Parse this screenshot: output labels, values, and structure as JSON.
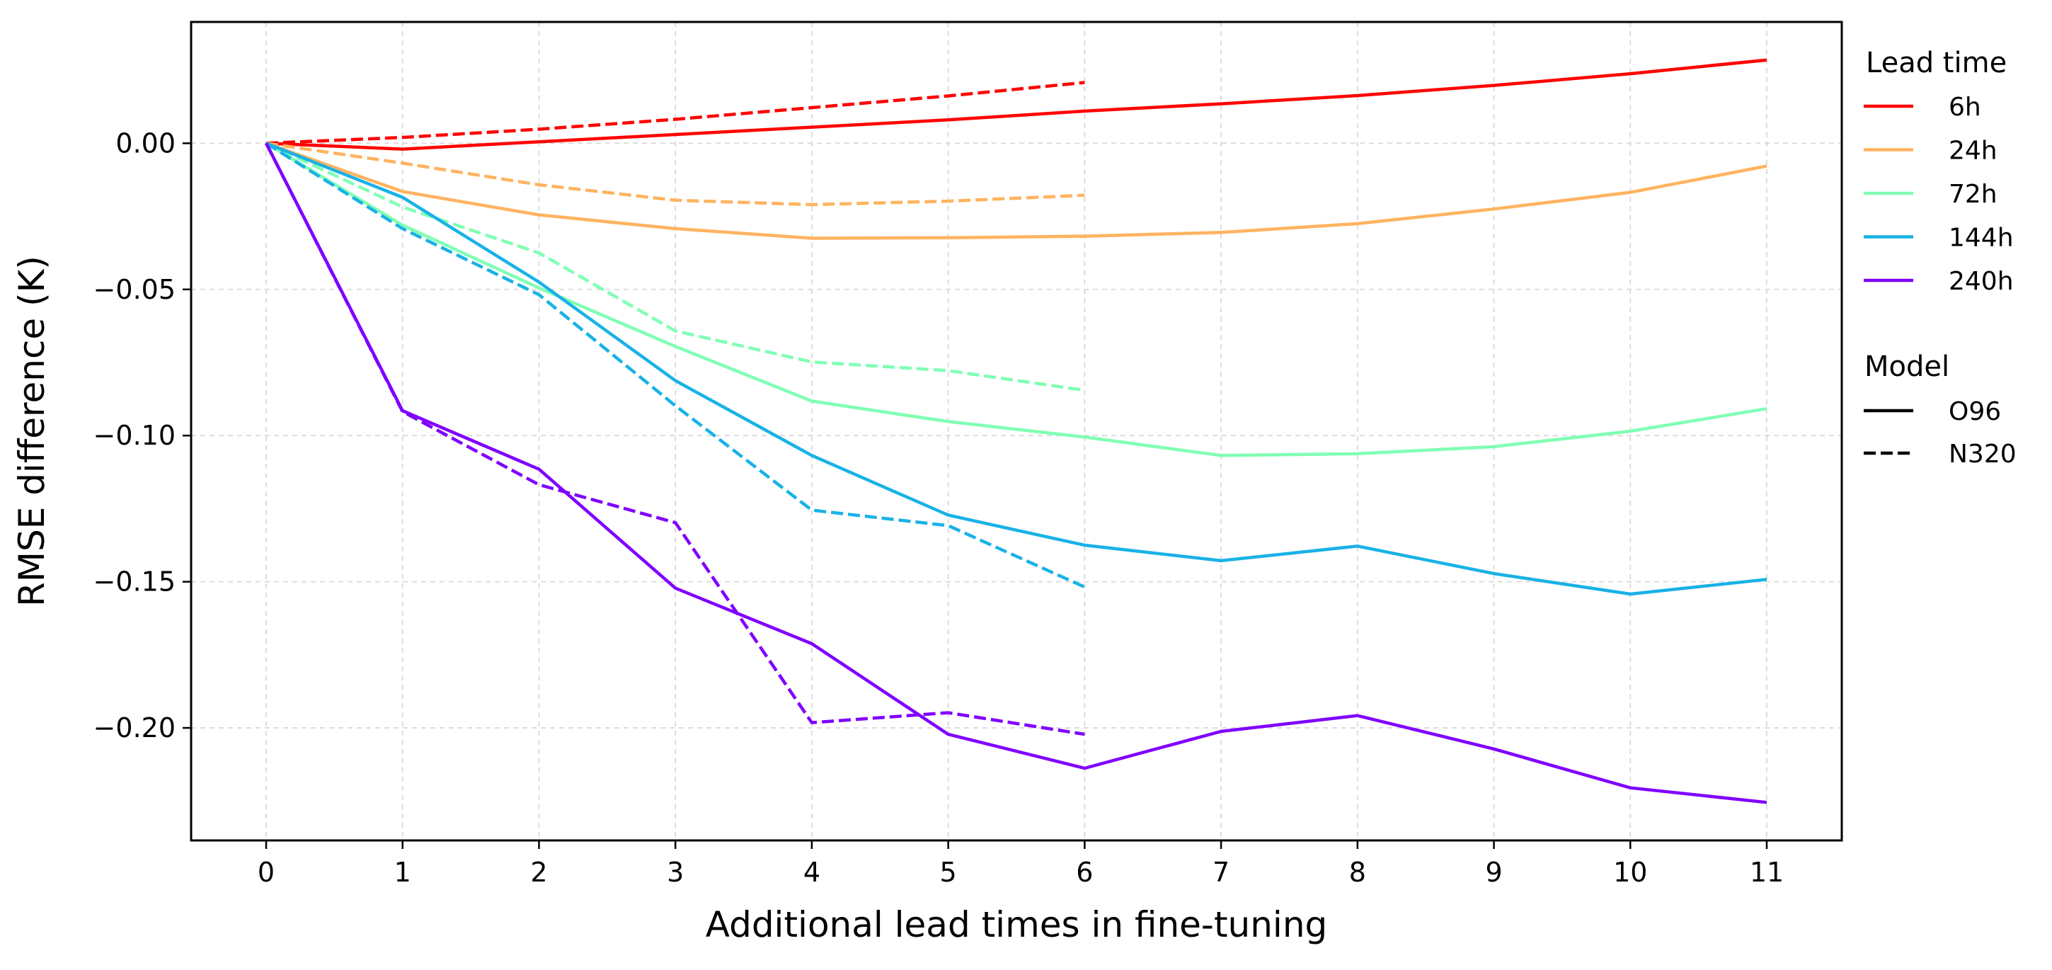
{
  "chart_data": {
    "type": "line",
    "title": "",
    "xlabel": "Additional lead times in fine-tuning",
    "ylabel": "RMSE difference (K)",
    "xlim": [
      -0.55,
      11.55
    ],
    "ylim": [
      -0.2385,
      0.0415
    ],
    "xticks": [
      0,
      1,
      2,
      3,
      4,
      5,
      6,
      7,
      8,
      9,
      10,
      11
    ],
    "xtick_labels": [
      "0",
      "1",
      "2",
      "3",
      "4",
      "5",
      "6",
      "7",
      "8",
      "9",
      "10",
      "11"
    ],
    "yticks": [
      0.0,
      -0.05,
      -0.1,
      -0.15,
      -0.2
    ],
    "ytick_labels": [
      "0.00",
      "−0.05",
      "−0.10",
      "−0.15",
      "−0.20"
    ],
    "grid": true,
    "legend_position": "outside-right",
    "legends": {
      "lead_time": {
        "title": "Lead time",
        "entries": [
          {
            "label": "6h",
            "color": "#ff0000"
          },
          {
            "label": "24h",
            "color": "#ffb360"
          },
          {
            "label": "72h",
            "color": "#80ffb4"
          },
          {
            "label": "144h",
            "color": "#18b2e6"
          },
          {
            "label": "240h",
            "color": "#8000ff"
          }
        ]
      },
      "model": {
        "title": "Model",
        "entries": [
          {
            "label": "O96",
            "style": "solid"
          },
          {
            "label": "N320",
            "style": "dashed"
          }
        ]
      }
    },
    "series": [
      {
        "name": "6h O96",
        "lead_time": "6h",
        "model": "O96",
        "color": "#ff0000",
        "style": "solid",
        "x": [
          0,
          1,
          2,
          3,
          4,
          5,
          6,
          7,
          8,
          9,
          10,
          11
        ],
        "values": [
          0.0,
          -0.002,
          0.0005,
          0.003,
          0.0055,
          0.008,
          0.011,
          0.0135,
          0.0163,
          0.0198,
          0.0238,
          0.0285
        ]
      },
      {
        "name": "6h N320",
        "lead_time": "6h",
        "model": "N320",
        "color": "#ff0000",
        "style": "dashed",
        "x": [
          0,
          1,
          2,
          3,
          4,
          5,
          6
        ],
        "values": [
          0.0,
          0.002,
          0.0048,
          0.0082,
          0.0122,
          0.0162,
          0.0208
        ]
      },
      {
        "name": "24h O96",
        "lead_time": "24h",
        "model": "O96",
        "color": "#ffb360",
        "style": "solid",
        "x": [
          0,
          1,
          2,
          3,
          4,
          5,
          6,
          7,
          8,
          9,
          10,
          11
        ],
        "values": [
          0.0,
          -0.0165,
          -0.0245,
          -0.0292,
          -0.0325,
          -0.0323,
          -0.0318,
          -0.0305,
          -0.0275,
          -0.0225,
          -0.0168,
          -0.0078
        ]
      },
      {
        "name": "24h N320",
        "lead_time": "24h",
        "model": "N320",
        "color": "#ffb360",
        "style": "dashed",
        "x": [
          0,
          1,
          2,
          3,
          4,
          5,
          6
        ],
        "values": [
          0.0,
          -0.0068,
          -0.0142,
          -0.0195,
          -0.021,
          -0.0198,
          -0.0178
        ]
      },
      {
        "name": "72h O96",
        "lead_time": "72h",
        "model": "O96",
        "color": "#80ffb4",
        "style": "solid",
        "x": [
          0,
          1,
          2,
          3,
          4,
          5,
          6,
          7,
          8,
          9,
          10,
          11
        ],
        "values": [
          0.0,
          -0.028,
          -0.0495,
          -0.0695,
          -0.0882,
          -0.0952,
          -0.1005,
          -0.1068,
          -0.1062,
          -0.1038,
          -0.0985,
          -0.0908
        ]
      },
      {
        "name": "72h N320",
        "lead_time": "72h",
        "model": "N320",
        "color": "#80ffb4",
        "style": "dashed",
        "x": [
          0,
          1,
          2,
          3,
          4,
          5,
          6
        ],
        "values": [
          0.0,
          -0.0218,
          -0.0375,
          -0.0642,
          -0.0748,
          -0.0778,
          -0.0845
        ]
      },
      {
        "name": "144h O96",
        "lead_time": "144h",
        "model": "O96",
        "color": "#18b2e6",
        "style": "solid",
        "x": [
          0,
          1,
          2,
          3,
          4,
          5,
          6,
          7,
          8,
          9,
          10,
          11
        ],
        "values": [
          0.0,
          -0.0185,
          -0.0475,
          -0.0812,
          -0.1068,
          -0.1272,
          -0.1375,
          -0.1428,
          -0.1378,
          -0.1472,
          -0.1542,
          -0.1492
        ]
      },
      {
        "name": "144h N320",
        "lead_time": "144h",
        "model": "N320",
        "color": "#18b2e6",
        "style": "dashed",
        "x": [
          0,
          1,
          2,
          3,
          4,
          5,
          6
        ],
        "values": [
          0.0,
          -0.0292,
          -0.0518,
          -0.0898,
          -0.1255,
          -0.1308,
          -0.1518
        ]
      },
      {
        "name": "240h O96",
        "lead_time": "240h",
        "model": "O96",
        "color": "#8000ff",
        "style": "solid",
        "x": [
          0,
          1,
          2,
          3,
          4,
          5,
          6,
          7,
          8,
          9,
          10,
          11
        ],
        "values": [
          0.0,
          -0.0915,
          -0.1115,
          -0.1522,
          -0.1712,
          -0.2022,
          -0.2138,
          -0.2012,
          -0.1958,
          -0.2072,
          -0.2205,
          -0.2255
        ]
      },
      {
        "name": "240h N320",
        "lead_time": "240h",
        "model": "N320",
        "color": "#8000ff",
        "style": "dashed",
        "x": [
          0,
          1,
          2,
          3,
          4,
          5,
          6
        ],
        "values": [
          0.0,
          -0.0918,
          -0.1168,
          -0.1298,
          -0.1982,
          -0.1948,
          -0.2022
        ]
      }
    ]
  }
}
